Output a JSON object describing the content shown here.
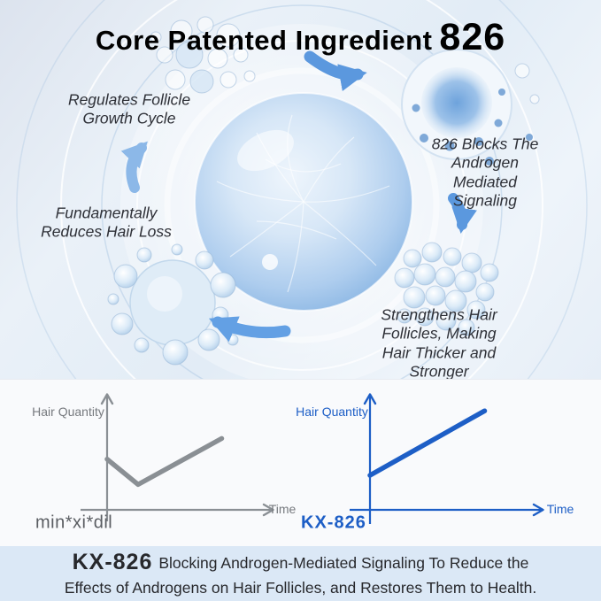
{
  "title": {
    "prefix": "Core Patented Ingredient",
    "highlight": "826"
  },
  "colors": {
    "title_blue": "#2560c0",
    "kx_line_blue": "#1d5ec6",
    "minoxidil_gray": "#8a8f94",
    "arrow_blue": "#5f9ce2",
    "caption_bg": "#dbe8f6",
    "label_dark": "#2e3037"
  },
  "hero": {
    "labels": {
      "regulates": "Regulates Follicle\nGrowth Cycle",
      "blocks": "826 Blocks The Androgen\nMediated Signaling",
      "reduces": "Fundamentally\nReduces Hair Loss",
      "strengthens": "Strengthens Hair Follicles, Making\nHair Thicker and Stronger"
    }
  },
  "chart_data": [
    {
      "type": "line",
      "label": "min*xi*dil",
      "ylabel": "Hair Quantity",
      "xlabel": "Time",
      "color": "#8a8f94",
      "axis_color": "#8a8f94",
      "x_range": [
        0,
        10
      ],
      "y_range": [
        0,
        10
      ],
      "points": [
        [
          0,
          4.4
        ],
        [
          2.0,
          2.2
        ],
        [
          7.4,
          6.2
        ]
      ],
      "legend_position": "below-left",
      "grid": false
    },
    {
      "type": "line",
      "label": "KX-826",
      "ylabel": "Hair Quantity",
      "xlabel": "Time",
      "color": "#1d5ec6",
      "axis_color": "#1d5ec6",
      "x_range": [
        0,
        10
      ],
      "y_range": [
        0,
        10
      ],
      "points": [
        [
          0,
          3.0
        ],
        [
          7.4,
          8.6
        ]
      ],
      "legend_position": "below-left",
      "grid": false
    }
  ],
  "caption": {
    "kx": "KX-826",
    "text": "Blocking Androgen-Mediated Signaling To Reduce the\nEffects of Androgens on Hair Follicles, and Restores Them to Health."
  }
}
